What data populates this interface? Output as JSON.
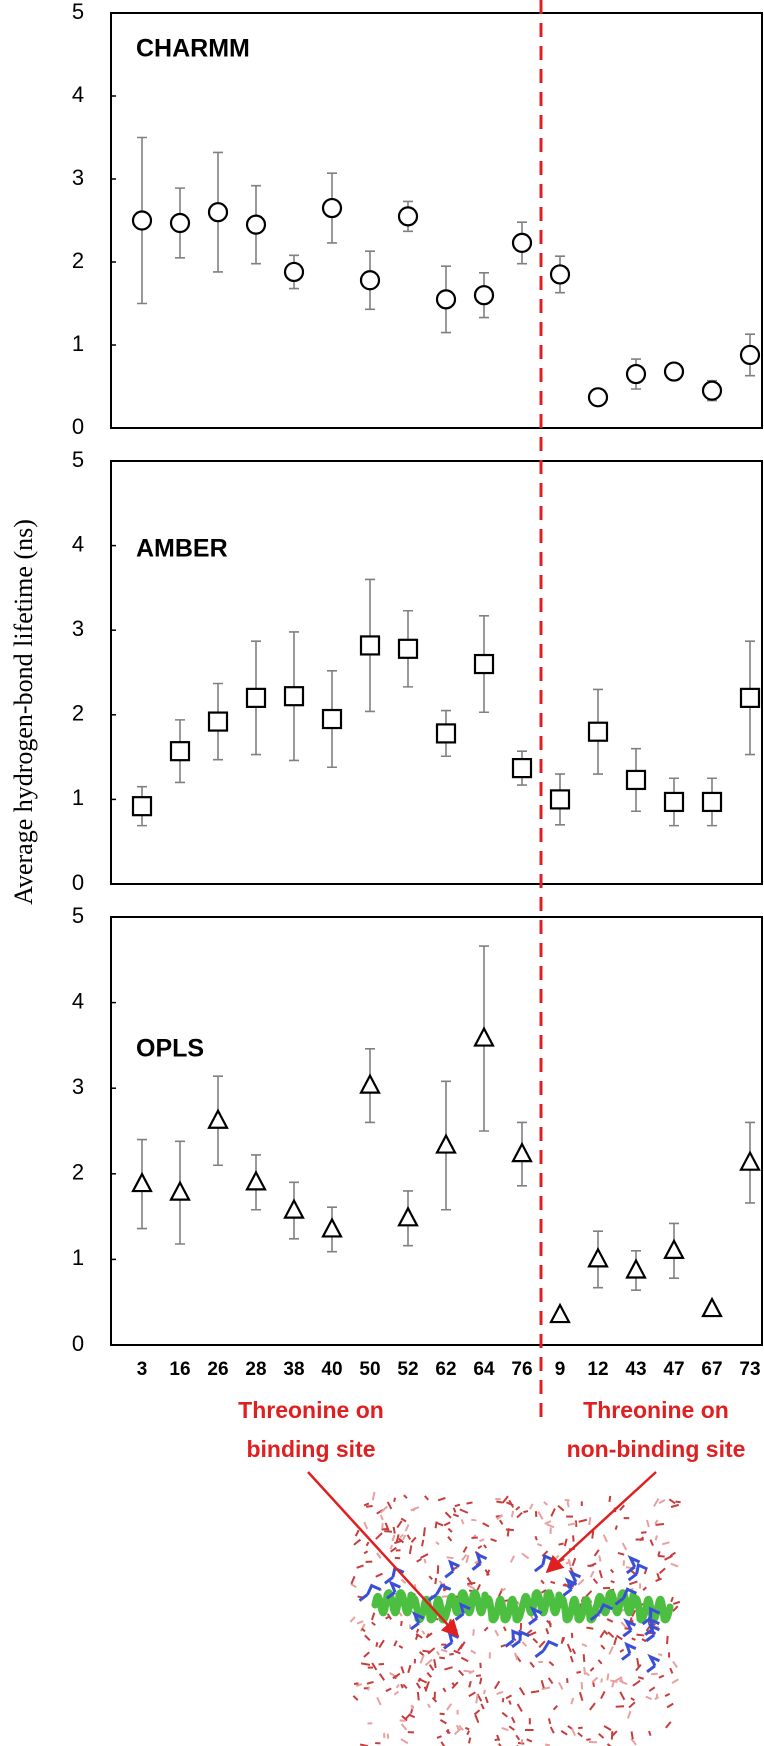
{
  "chart_data": [
    {
      "type": "errorbar",
      "title": "CHARMM",
      "marker": "circle",
      "color": "#000000",
      "error_color": "#808080",
      "values": [
        2.5,
        2.47,
        2.6,
        2.45,
        1.88,
        2.65,
        1.78,
        2.55,
        1.55,
        1.6,
        2.23,
        1.85,
        0.37,
        0.65,
        0.68,
        0.45,
        0.88
      ],
      "errors": [
        1.0,
        0.42,
        0.72,
        0.47,
        0.2,
        0.42,
        0.35,
        0.18,
        0.4,
        0.27,
        0.25,
        0.22,
        0.05,
        0.18,
        0.08,
        0.12,
        0.25
      ],
      "ylim": [
        0,
        5
      ],
      "yticks": [
        0,
        1,
        2,
        3,
        4,
        5
      ]
    },
    {
      "type": "errorbar",
      "title": "AMBER",
      "marker": "square",
      "color": "#000000",
      "error_color": "#808080",
      "values": [
        0.92,
        1.57,
        1.92,
        2.2,
        2.22,
        1.95,
        2.82,
        2.78,
        1.78,
        2.6,
        1.37,
        1.0,
        1.8,
        1.23,
        0.97,
        0.97,
        2.2
      ],
      "errors": [
        0.23,
        0.37,
        0.45,
        0.67,
        0.76,
        0.57,
        0.78,
        0.45,
        0.27,
        0.57,
        0.2,
        0.3,
        0.5,
        0.37,
        0.28,
        0.28,
        0.67
      ],
      "ylim": [
        0,
        5
      ],
      "yticks": [
        0,
        1,
        2,
        3,
        4,
        5
      ]
    },
    {
      "type": "errorbar",
      "title": "OPLS",
      "marker": "triangle",
      "color": "#000000",
      "error_color": "#808080",
      "categories": [
        "3",
        "16",
        "26",
        "28",
        "38",
        "40",
        "50",
        "52",
        "62",
        "64",
        "76",
        "9",
        "12",
        "43",
        "47",
        "67",
        "73"
      ],
      "values": [
        1.88,
        1.78,
        2.62,
        1.9,
        1.57,
        1.35,
        3.03,
        1.48,
        2.33,
        3.58,
        2.23,
        0.35,
        1.0,
        0.87,
        1.1,
        0.42,
        2.13
      ],
      "errors": [
        0.52,
        0.6,
        0.52,
        0.32,
        0.33,
        0.26,
        0.43,
        0.32,
        0.75,
        1.08,
        0.37,
        0,
        0.33,
        0.23,
        0.32,
        0,
        0.47
      ],
      "ylim": [
        0,
        5
      ],
      "yticks": [
        0,
        1,
        2,
        3,
        4,
        5
      ]
    }
  ],
  "figure": {
    "ylabel": "Average hydrogen-bond lifetime (ns)",
    "divider_color": "#e02020",
    "annotations": [
      {
        "lines": [
          "Threonine on",
          "binding  site"
        ],
        "color": "#e02020"
      },
      {
        "lines": [
          "Threonine on",
          "non-binding  site"
        ],
        "color": "#e02020"
      }
    ]
  }
}
